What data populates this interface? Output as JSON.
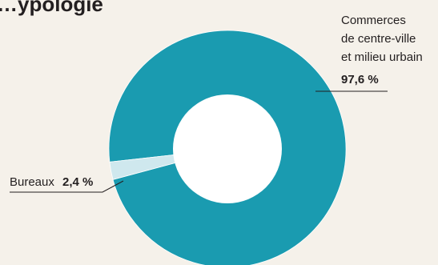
{
  "title_fragment": "…ypologie",
  "colors": {
    "background": "#f5f1ea",
    "commerces": "#1a9bb0",
    "bureaux": "#cfe8ee",
    "center": "#ffffff",
    "leader": "#231f20"
  },
  "chart_data": {
    "type": "pie",
    "donut": true,
    "slices": [
      {
        "label_lines": [
          "Commerces",
          "de centre-ville",
          "et milieu urbain"
        ],
        "value": 97.6,
        "value_label": "97,6 %"
      },
      {
        "label_lines": [
          "Bureaux"
        ],
        "value": 2.4,
        "value_label": "2,4 %"
      }
    ]
  }
}
